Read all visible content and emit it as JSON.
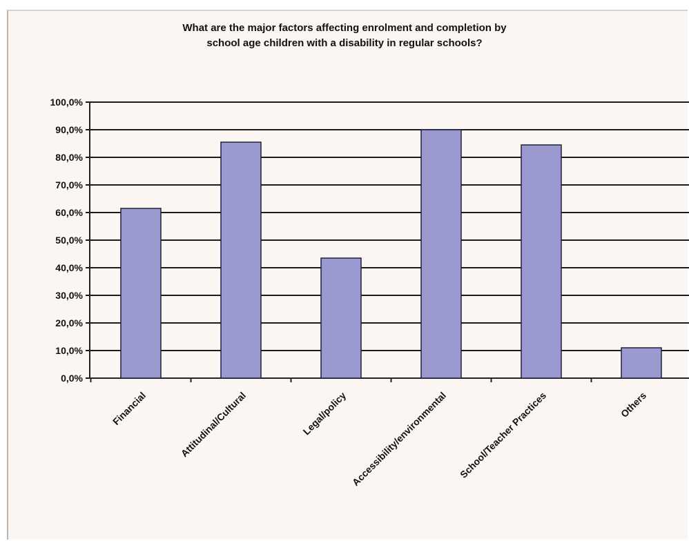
{
  "chart_data": {
    "type": "bar",
    "title_lines": [
      "What are the major factors affecting enrolment and completion by",
      "school age children with a disability in regular schools?"
    ],
    "categories": [
      "Financial",
      "Attitudinal/Cultural",
      "Legal/policy",
      "Accessibility/environmental",
      "School/Teacher Practices",
      "Others"
    ],
    "values": [
      61.5,
      85.5,
      43.5,
      90.0,
      84.5,
      11.0
    ],
    "y_tick_labels": [
      "0,0%",
      "10,0%",
      "20,0%",
      "30,0%",
      "40,0%",
      "50,0%",
      "60,0%",
      "70,0%",
      "80,0%",
      "90,0%",
      "100,0%"
    ],
    "ylim": [
      0,
      100
    ],
    "grid": true,
    "legend": "none",
    "colors": {
      "bar": "#9b9ad0",
      "bar_edge": "#1f1f3a",
      "grid": "#1a1a1a",
      "background": "#fbf6f2"
    }
  }
}
